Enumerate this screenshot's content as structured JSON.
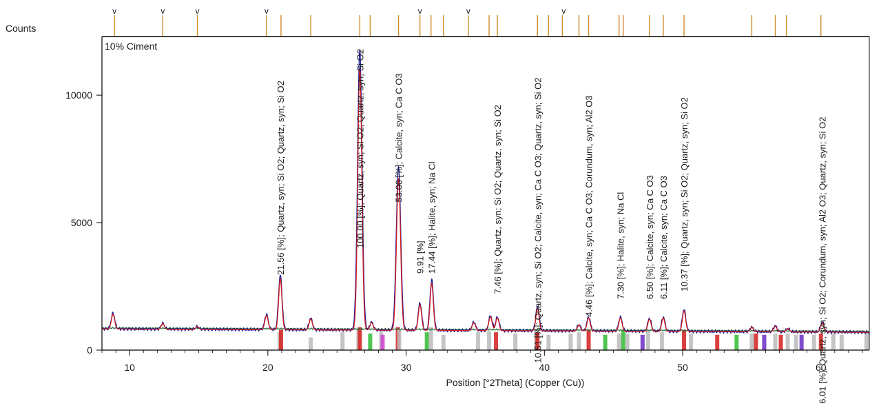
{
  "chart_data": {
    "type": "line",
    "panel_label": "10% Ciment",
    "ylabel": "Counts",
    "xlabel": "Position [°2Theta] (Copper (Cu))",
    "xlim": [
      8,
      63.5
    ],
    "ylim": [
      0,
      12300
    ],
    "x_ticks": [
      10,
      20,
      30,
      40,
      50,
      60
    ],
    "y_ticks": [
      0,
      5000,
      10000
    ],
    "colors": {
      "observed": "#1a1a9a",
      "calculated": "#d21e1e",
      "background": "#1f6e3a",
      "marker_bar": "#d08a2a",
      "axis": "#000000"
    },
    "peaks_observed": [
      {
        "x": 8.8,
        "y": 1450
      },
      {
        "x": 12.4,
        "y": 1050
      },
      {
        "x": 14.9,
        "y": 920
      },
      {
        "x": 19.9,
        "y": 1400
      },
      {
        "x": 20.9,
        "y": 2950
      },
      {
        "x": 23.1,
        "y": 1250
      },
      {
        "x": 26.65,
        "y": 11800
      },
      {
        "x": 27.5,
        "y": 1100
      },
      {
        "x": 29.45,
        "y": 7200
      },
      {
        "x": 31.0,
        "y": 1850
      },
      {
        "x": 31.85,
        "y": 2750
      },
      {
        "x": 34.9,
        "y": 1100
      },
      {
        "x": 36.1,
        "y": 1350
      },
      {
        "x": 36.6,
        "y": 1300
      },
      {
        "x": 39.5,
        "y": 1700
      },
      {
        "x": 42.5,
        "y": 1000
      },
      {
        "x": 43.2,
        "y": 1300
      },
      {
        "x": 45.5,
        "y": 1300
      },
      {
        "x": 47.6,
        "y": 1250
      },
      {
        "x": 48.6,
        "y": 1300
      },
      {
        "x": 50.1,
        "y": 1600
      },
      {
        "x": 55.0,
        "y": 900
      },
      {
        "x": 56.7,
        "y": 950
      },
      {
        "x": 57.6,
        "y": 850
      },
      {
        "x": 60.1,
        "y": 1100
      }
    ],
    "background_start": 830,
    "background_end": 700,
    "v_markers": [
      8.9,
      12.4,
      14.9,
      19.9,
      31.0,
      34.5,
      41.4
    ],
    "ref_tick_positions": [
      8.9,
      12.4,
      14.9,
      19.9,
      20.95,
      23.1,
      26.65,
      27.4,
      29.45,
      31.0,
      31.8,
      32.7,
      34.5,
      36.0,
      36.6,
      39.5,
      40.3,
      41.3,
      42.5,
      43.2,
      45.4,
      45.7,
      47.6,
      48.6,
      50.1,
      55.0,
      56.7,
      57.5,
      60.0
    ],
    "ref_sticks": [
      {
        "x": 20.85,
        "h": 700,
        "c": "#bbbbbb"
      },
      {
        "x": 20.95,
        "h": 800,
        "c": "#d21e1e"
      },
      {
        "x": 23.1,
        "h": 500,
        "c": "#bbbbbb"
      },
      {
        "x": 25.4,
        "h": 700,
        "c": "#bbbbbb"
      },
      {
        "x": 26.55,
        "h": 850,
        "c": "#bbbbbb"
      },
      {
        "x": 26.65,
        "h": 900,
        "c": "#d21e1e"
      },
      {
        "x": 27.4,
        "h": 650,
        "c": "#33bb33"
      },
      {
        "x": 28.2,
        "h": 700,
        "c": "#bbbbbb"
      },
      {
        "x": 28.3,
        "h": 600,
        "c": "#d040d0"
      },
      {
        "x": 29.4,
        "h": 900,
        "c": "#d21e1e"
      },
      {
        "x": 29.5,
        "h": 800,
        "c": "#bbbbbb"
      },
      {
        "x": 31.5,
        "h": 700,
        "c": "#33bb33"
      },
      {
        "x": 31.8,
        "h": 900,
        "c": "#bbbbbb"
      },
      {
        "x": 32.7,
        "h": 600,
        "c": "#bbbbbb"
      },
      {
        "x": 35.2,
        "h": 700,
        "c": "#bbbbbb"
      },
      {
        "x": 36.0,
        "h": 750,
        "c": "#bbbbbb"
      },
      {
        "x": 36.5,
        "h": 700,
        "c": "#d21e1e"
      },
      {
        "x": 37.9,
        "h": 650,
        "c": "#bbbbbb"
      },
      {
        "x": 39.4,
        "h": 800,
        "c": "#bbbbbb"
      },
      {
        "x": 39.5,
        "h": 700,
        "c": "#d21e1e"
      },
      {
        "x": 40.3,
        "h": 600,
        "c": "#bbbbbb"
      },
      {
        "x": 41.9,
        "h": 650,
        "c": "#bbbbbb"
      },
      {
        "x": 42.5,
        "h": 700,
        "c": "#bbbbbb"
      },
      {
        "x": 43.2,
        "h": 800,
        "c": "#d21e1e"
      },
      {
        "x": 44.4,
        "h": 600,
        "c": "#33bb33"
      },
      {
        "x": 45.4,
        "h": 650,
        "c": "#bbbbbb"
      },
      {
        "x": 45.7,
        "h": 800,
        "c": "#33bb33"
      },
      {
        "x": 46.0,
        "h": 650,
        "c": "#bbbbbb"
      },
      {
        "x": 47.1,
        "h": 600,
        "c": "#6a2cc6"
      },
      {
        "x": 47.5,
        "h": 800,
        "c": "#bbbbbb"
      },
      {
        "x": 48.5,
        "h": 700,
        "c": "#bbbbbb"
      },
      {
        "x": 50.1,
        "h": 800,
        "c": "#d21e1e"
      },
      {
        "x": 50.6,
        "h": 650,
        "c": "#bbbbbb"
      },
      {
        "x": 52.5,
        "h": 600,
        "c": "#d21e1e"
      },
      {
        "x": 53.9,
        "h": 600,
        "c": "#33bb33"
      },
      {
        "x": 55.0,
        "h": 650,
        "c": "#bbbbbb"
      },
      {
        "x": 55.3,
        "h": 650,
        "c": "#d21e1e"
      },
      {
        "x": 55.9,
        "h": 600,
        "c": "#6a2cc6"
      },
      {
        "x": 56.7,
        "h": 650,
        "c": "#bbbbbb"
      },
      {
        "x": 57.1,
        "h": 600,
        "c": "#d21e1e"
      },
      {
        "x": 57.6,
        "h": 650,
        "c": "#bbbbbb"
      },
      {
        "x": 58.2,
        "h": 600,
        "c": "#bbbbbb"
      },
      {
        "x": 58.6,
        "h": 600,
        "c": "#6a2cc6"
      },
      {
        "x": 59.5,
        "h": 600,
        "c": "#bbbbbb"
      },
      {
        "x": 60.0,
        "h": 650,
        "c": "#d21e1e"
      },
      {
        "x": 60.9,
        "h": 650,
        "c": "#bbbbbb"
      },
      {
        "x": 61.5,
        "h": 600,
        "c": "#bbbbbb"
      },
      {
        "x": 63.3,
        "h": 700,
        "c": "#bbbbbb"
      }
    ],
    "annotations": [
      {
        "x": 20.9,
        "y": 2950,
        "text": "21.56 [%]; Quartz, syn; Si O2; Quartz, syn; Si O2"
      },
      {
        "x": 26.65,
        "y": 4000,
        "text": "100.00 [%]; Quartz, syn; Si O2; Quartz, syn; Si O2"
      },
      {
        "x": 29.45,
        "y": 5800,
        "text": "53.00 [%]; Calcite, syn; Ca C O3"
      },
      {
        "x": 31.0,
        "y": 3000,
        "text": "9.91 [%]"
      },
      {
        "x": 31.85,
        "y": 3000,
        "text": "17.44 [%]; Halite, syn; Na Cl"
      },
      {
        "x": 36.6,
        "y": 2200,
        "text": "7.46 [%]; Quartz, syn; Si O2; Quartz, syn; Si O2"
      },
      {
        "x": 39.5,
        "y": -500,
        "text": "10.51 [%]; Quartz, syn; Si O2; Calcite, syn; Ca C O3; Quartz, syn; Si O2"
      },
      {
        "x": 43.2,
        "y": 1300,
        "text": "4.46 [%]; Calcite, syn; Ca C O3; Corundum, syn; Al2 O3"
      },
      {
        "x": 45.5,
        "y": 2000,
        "text": "7.30 [%]; Halite, syn; Na Cl"
      },
      {
        "x": 47.6,
        "y": 2000,
        "text": "6.50 [%]; Calcite, syn; Ca C O3"
      },
      {
        "x": 48.6,
        "y": 2000,
        "text": "6.11 [%]; Calcite, syn; Ca C O3"
      },
      {
        "x": 50.1,
        "y": 2300,
        "text": "10.37 [%]; Quartz, syn; Si O2; Quartz, syn; Si O2"
      },
      {
        "x": 60.1,
        "y": -2100,
        "text": "6.01 [%]; Quartz, syn; Si O2; Corundum, syn; Al2 O3; Quartz, syn; Si O2"
      }
    ]
  }
}
